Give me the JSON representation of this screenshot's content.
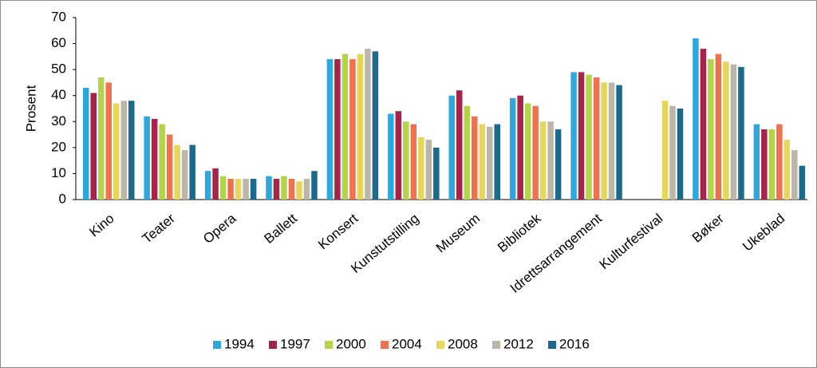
{
  "chart_data": {
    "type": "bar",
    "ylabel": "Prosent",
    "categories": [
      "Kino",
      "Teater",
      "Opera",
      "Ballett",
      "Konsert",
      "Kunstutstilling",
      "Museum",
      "Bibliotek",
      "Idrettsarrangement",
      "Kulturfestival",
      "Bøker",
      "Ukeblad"
    ],
    "series": [
      {
        "name": "1994",
        "color": "#2ea8dc",
        "values": [
          43,
          32,
          11,
          9,
          54,
          33,
          40,
          39,
          49,
          null,
          62,
          29
        ]
      },
      {
        "name": "1997",
        "color": "#a6234a",
        "values": [
          41,
          31,
          12,
          8,
          54,
          34,
          42,
          40,
          49,
          null,
          58,
          27
        ]
      },
      {
        "name": "2000",
        "color": "#b3d34a",
        "values": [
          47,
          29,
          9,
          9,
          56,
          30,
          36,
          37,
          48,
          null,
          54,
          27
        ]
      },
      {
        "name": "2004",
        "color": "#f0714f",
        "values": [
          45,
          25,
          8,
          8,
          54,
          29,
          32,
          36,
          47,
          null,
          56,
          29
        ]
      },
      {
        "name": "2008",
        "color": "#e6d65a",
        "values": [
          37,
          21,
          8,
          7,
          56,
          24,
          29,
          30,
          45,
          38,
          53,
          23
        ]
      },
      {
        "name": "2012",
        "color": "#bcb6a8",
        "values": [
          38,
          19,
          8,
          8,
          58,
          23,
          28,
          30,
          45,
          36,
          52,
          19
        ]
      },
      {
        "name": "2016",
        "color": "#1b6a8c",
        "values": [
          38,
          21,
          8,
          11,
          57,
          20,
          29,
          27,
          44,
          35,
          51,
          13
        ]
      }
    ],
    "ylim": [
      0,
      70
    ],
    "yticks": [
      0,
      10,
      20,
      30,
      40,
      50,
      60,
      70
    ],
    "legend": "bottom"
  }
}
